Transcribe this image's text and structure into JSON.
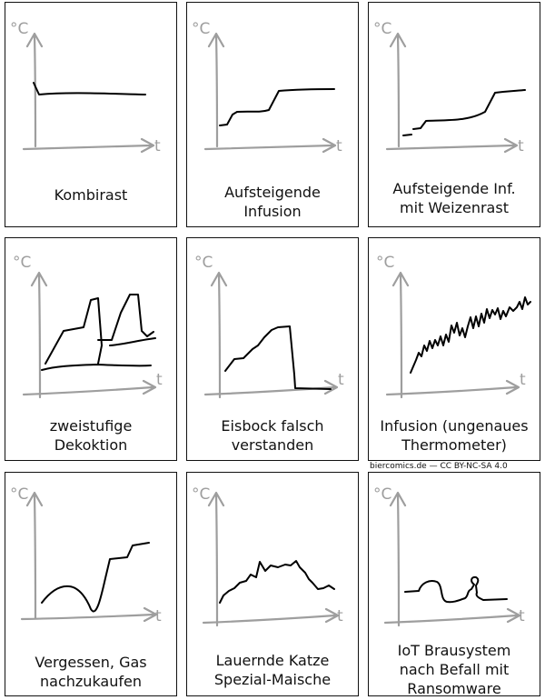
{
  "credit": "biercomics.de — CC BY-NC-SA 4.0",
  "axis": {
    "y_label": "°C",
    "x_label": "t"
  },
  "panels": [
    {
      "caption": "Kombirast"
    },
    {
      "caption": "Aufsteigende\nInfusion"
    },
    {
      "caption": "Aufsteigende Inf.\nmit Weizenrast"
    },
    {
      "caption": "zweistufige\nDekoktion"
    },
    {
      "caption": "Eisbock falsch\nverstanden"
    },
    {
      "caption": "Infusion (ungenaues\nThermometer)"
    },
    {
      "caption": "Vergessen, Gas\nnachzukaufen"
    },
    {
      "caption": "Lauernde Katze\nSpezial-Maische"
    },
    {
      "caption": "IoT Brausystem\nnach Befall mit\nRansomware"
    }
  ],
  "colors": {
    "axis": "#9e9e9e",
    "curve": "#000000",
    "border": "#111111"
  }
}
